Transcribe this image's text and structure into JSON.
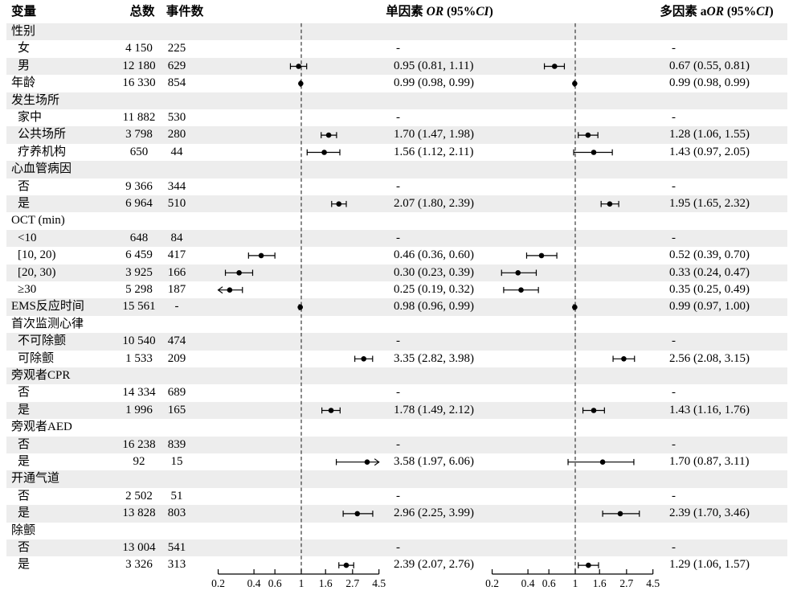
{
  "header": {
    "variable": "变量",
    "total": "总数",
    "events": "事件数",
    "univariate_parts": [
      {
        "text": "单因素 ",
        "italic": false
      },
      {
        "text": "OR",
        "italic": true
      },
      {
        "text": " (95%",
        "italic": false
      },
      {
        "text": "CI",
        "italic": true
      },
      {
        "text": ")",
        "italic": false
      }
    ],
    "multivariate_parts": [
      {
        "text": "多因素 a",
        "italic": false
      },
      {
        "text": "OR",
        "italic": true
      },
      {
        "text": " (95%",
        "italic": false
      },
      {
        "text": "CI",
        "italic": true
      },
      {
        "text": ")",
        "italic": false
      }
    ]
  },
  "colors": {
    "background": "#ffffff",
    "stripe": "#ededed",
    "text": "#000000",
    "marker": "#000000",
    "axis": "#000000",
    "ref_line": "#3a3a3a"
  },
  "chart_data": {
    "type": "scatter",
    "subtype": "forest-plot",
    "x_axis": {
      "scale": "log10",
      "range": [
        0.2,
        4.5
      ],
      "ticks": [
        "0.2",
        "0.4",
        "0.6",
        "1",
        "1.6",
        "2.7",
        "4.5"
      ],
      "ref_line": 1
    },
    "null_marker": "-",
    "rows": [
      {
        "type": "section",
        "label": "性别"
      },
      {
        "type": "ref",
        "label": "女",
        "indent": 1,
        "total": "4 150",
        "events": "225"
      },
      {
        "type": "data",
        "label": "男",
        "indent": 1,
        "total": "12 180",
        "events": "629",
        "uni": {
          "or": 0.95,
          "lo": 0.81,
          "hi": 1.11,
          "text": "0.95 (0.81, 1.11)"
        },
        "multi": {
          "or": 0.67,
          "lo": 0.55,
          "hi": 0.81,
          "text": "0.67 (0.55, 0.81)"
        }
      },
      {
        "type": "data",
        "label": "年龄",
        "indent": 0,
        "total": "16 330",
        "events": "854",
        "uni": {
          "or": 0.99,
          "lo": 0.98,
          "hi": 0.99,
          "text": "0.99 (0.98, 0.99)"
        },
        "multi": {
          "or": 0.99,
          "lo": 0.98,
          "hi": 0.99,
          "text": "0.99 (0.98, 0.99)"
        }
      },
      {
        "type": "section",
        "label": "发生场所"
      },
      {
        "type": "ref",
        "label": "家中",
        "indent": 1,
        "total": "11 882",
        "events": "530"
      },
      {
        "type": "data",
        "label": "公共场所",
        "indent": 1,
        "total": "3 798",
        "events": "280",
        "uni": {
          "or": 1.7,
          "lo": 1.47,
          "hi": 1.98,
          "text": "1.70 (1.47, 1.98)"
        },
        "multi": {
          "or": 1.28,
          "lo": 1.06,
          "hi": 1.55,
          "text": "1.28 (1.06, 1.55)"
        }
      },
      {
        "type": "data",
        "label": "疗养机构",
        "indent": 1,
        "total": "650",
        "events": "44",
        "uni": {
          "or": 1.56,
          "lo": 1.12,
          "hi": 2.11,
          "text": "1.56 (1.12, 2.11)"
        },
        "multi": {
          "or": 1.43,
          "lo": 0.97,
          "hi": 2.05,
          "text": "1.43 (0.97, 2.05)"
        }
      },
      {
        "type": "section",
        "label": "心血管病因"
      },
      {
        "type": "ref",
        "label": "否",
        "indent": 1,
        "total": "9 366",
        "events": "344"
      },
      {
        "type": "data",
        "label": "是",
        "indent": 1,
        "total": "6 964",
        "events": "510",
        "uni": {
          "or": 2.07,
          "lo": 1.8,
          "hi": 2.39,
          "text": "2.07 (1.80, 2.39)"
        },
        "multi": {
          "or": 1.95,
          "lo": 1.65,
          "hi": 2.32,
          "text": "1.95 (1.65, 2.32)"
        }
      },
      {
        "type": "section",
        "label": "OCT (min)"
      },
      {
        "type": "ref",
        "label": "<10",
        "indent": 1,
        "total": "648",
        "events": "84"
      },
      {
        "type": "data",
        "label": "[10, 20)",
        "indent": 1,
        "total": "6 459",
        "events": "417",
        "uni": {
          "or": 0.46,
          "lo": 0.36,
          "hi": 0.6,
          "text": "0.46 (0.36, 0.60)"
        },
        "multi": {
          "or": 0.52,
          "lo": 0.39,
          "hi": 0.7,
          "text": "0.52 (0.39, 0.70)"
        }
      },
      {
        "type": "data",
        "label": "[20, 30)",
        "indent": 1,
        "total": "3 925",
        "events": "166",
        "uni": {
          "or": 0.3,
          "lo": 0.23,
          "hi": 0.39,
          "text": "0.30 (0.23, 0.39)"
        },
        "multi": {
          "or": 0.33,
          "lo": 0.24,
          "hi": 0.47,
          "text": "0.33 (0.24, 0.47)"
        }
      },
      {
        "type": "data",
        "label": "≥30",
        "indent": 1,
        "total": "5 298",
        "events": "187",
        "uni": {
          "or": 0.25,
          "lo": 0.19,
          "hi": 0.32,
          "text": "0.25 (0.19, 0.32)"
        },
        "multi": {
          "or": 0.35,
          "lo": 0.25,
          "hi": 0.49,
          "text": "0.35 (0.25, 0.49)"
        }
      },
      {
        "type": "data",
        "label": "EMS反应时间",
        "indent": 0,
        "total": "15 561",
        "events": "-",
        "uni": {
          "or": 0.98,
          "lo": 0.96,
          "hi": 0.99,
          "text": "0.98 (0.96, 0.99)"
        },
        "multi": {
          "or": 0.99,
          "lo": 0.97,
          "hi": 1.0,
          "text": "0.99 (0.97, 1.00)"
        }
      },
      {
        "type": "section",
        "label": "首次监测心律"
      },
      {
        "type": "ref",
        "label": "不可除颤",
        "indent": 1,
        "total": "10 540",
        "events": "474"
      },
      {
        "type": "data",
        "label": "可除颤",
        "indent": 1,
        "total": "1 533",
        "events": "209",
        "uni": {
          "or": 3.35,
          "lo": 2.82,
          "hi": 3.98,
          "text": "3.35 (2.82, 3.98)"
        },
        "multi": {
          "or": 2.56,
          "lo": 2.08,
          "hi": 3.15,
          "text": "2.56 (2.08, 3.15)"
        }
      },
      {
        "type": "section",
        "label": "旁观者CPR"
      },
      {
        "type": "ref",
        "label": "否",
        "indent": 1,
        "total": "14 334",
        "events": "689"
      },
      {
        "type": "data",
        "label": "是",
        "indent": 1,
        "total": "1 996",
        "events": "165",
        "uni": {
          "or": 1.78,
          "lo": 1.49,
          "hi": 2.12,
          "text": "1.78 (1.49, 2.12)"
        },
        "multi": {
          "or": 1.43,
          "lo": 1.16,
          "hi": 1.76,
          "text": "1.43 (1.16, 1.76)"
        }
      },
      {
        "type": "section",
        "label": "旁观者AED"
      },
      {
        "type": "ref",
        "label": "否",
        "indent": 1,
        "total": "16 238",
        "events": "839"
      },
      {
        "type": "data",
        "label": "是",
        "indent": 1,
        "total": "92",
        "events": "15",
        "uni": {
          "or": 3.58,
          "lo": 1.97,
          "hi": 6.06,
          "text": "3.58 (1.97, 6.06)"
        },
        "multi": {
          "or": 1.7,
          "lo": 0.87,
          "hi": 3.11,
          "text": "1.70 (0.87, 3.11)"
        }
      },
      {
        "type": "section",
        "label": "开通气道"
      },
      {
        "type": "ref",
        "label": "否",
        "indent": 1,
        "total": "2 502",
        "events": "51"
      },
      {
        "type": "data",
        "label": "是",
        "indent": 1,
        "total": "13 828",
        "events": "803",
        "uni": {
          "or": 2.96,
          "lo": 2.25,
          "hi": 3.99,
          "text": "2.96 (2.25, 3.99)"
        },
        "multi": {
          "or": 2.39,
          "lo": 1.7,
          "hi": 3.46,
          "text": "2.39 (1.70, 3.46)"
        }
      },
      {
        "type": "section",
        "label": "除颤"
      },
      {
        "type": "ref",
        "label": "否",
        "indent": 1,
        "total": "13 004",
        "events": "541"
      },
      {
        "type": "data",
        "label": "是",
        "indent": 1,
        "total": "3 326",
        "events": "313",
        "uni": {
          "or": 2.39,
          "lo": 2.07,
          "hi": 2.76,
          "text": "2.39 (2.07, 2.76)"
        },
        "multi": {
          "or": 1.29,
          "lo": 1.06,
          "hi": 1.57,
          "text": "1.29 (1.06, 1.57)"
        }
      }
    ]
  }
}
